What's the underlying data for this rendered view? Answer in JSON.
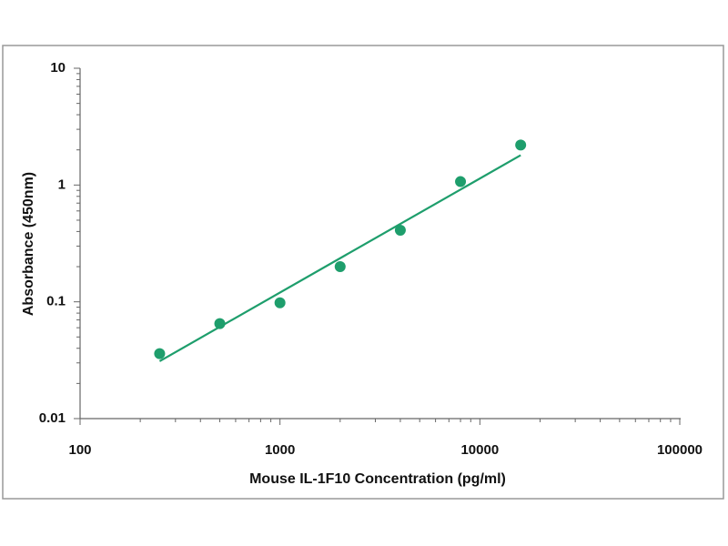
{
  "chart_data": {
    "type": "scatter",
    "x_label": "Mouse IL-1F10 Concentration (pg/ml)",
    "y_label": "Absorbance (450nm)",
    "x": [
      250,
      500,
      1000,
      2000,
      4000,
      8000,
      16000
    ],
    "values": [
      0.036,
      0.065,
      0.098,
      0.2,
      0.41,
      1.07,
      2.2
    ],
    "color": "#1e9e6c",
    "fit": {
      "x": [
        250,
        16000
      ],
      "values": [
        0.031,
        1.8
      ]
    },
    "xlim": [
      100,
      100000
    ],
    "xticks": [
      100,
      1000,
      10000,
      100000
    ],
    "ylim": [
      0.01,
      10
    ],
    "yticks": [
      0.01,
      0.1,
      1,
      10
    ],
    "log_x": true,
    "log_y": true,
    "minor_ticks": true
  }
}
